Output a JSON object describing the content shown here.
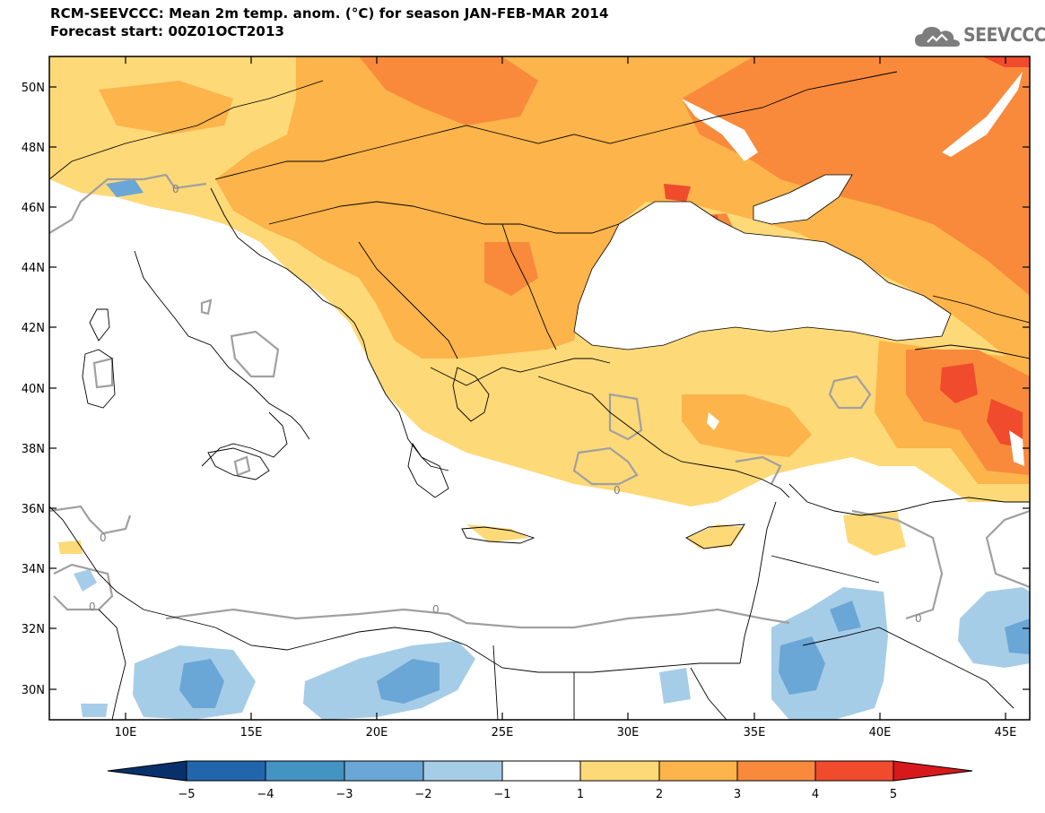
{
  "title_line1": "RCM-SEEVCCC: Mean 2m temp. anom. (°C) for season JAN-FEB-MAR 2014",
  "title_line2": "Forecast start: 00Z01OCT2013",
  "logo_text": "SEEVCCC",
  "logo_icon": "cloud-logo-icon",
  "lat_labels": [
    "50N",
    "48N",
    "46N",
    "44N",
    "42N",
    "40N",
    "38N",
    "36N",
    "34N",
    "32N",
    "30N"
  ],
  "lon_labels": [
    "10E",
    "15E",
    "20E",
    "25E",
    "30E",
    "35E",
    "40E",
    "45E"
  ],
  "contour_zero_label": "0",
  "colorbar": {
    "ticks": [
      "−5",
      "−4",
      "−3",
      "−2",
      "−1",
      "1",
      "2",
      "3",
      "4",
      "5"
    ],
    "colors": [
      "#08306b",
      "#2166ac",
      "#4393c3",
      "#6aa7d6",
      "#a6cde8",
      "#ffffff",
      "#fed978",
      "#fcb44b",
      "#f98a3c",
      "#f04b2d",
      "#d7191c"
    ]
  },
  "map_colors": {
    "anom_1_2": "#fed978",
    "anom_2_3": "#fcb44b",
    "anom_3_4": "#f98a3c",
    "anom_4_5": "#f04b2d",
    "anom_neg_1_2": "#a6cde8",
    "anom_neg_2_3": "#6aa7d6",
    "zero_contour": "#a0a0a0",
    "land_border": "#000000"
  }
}
